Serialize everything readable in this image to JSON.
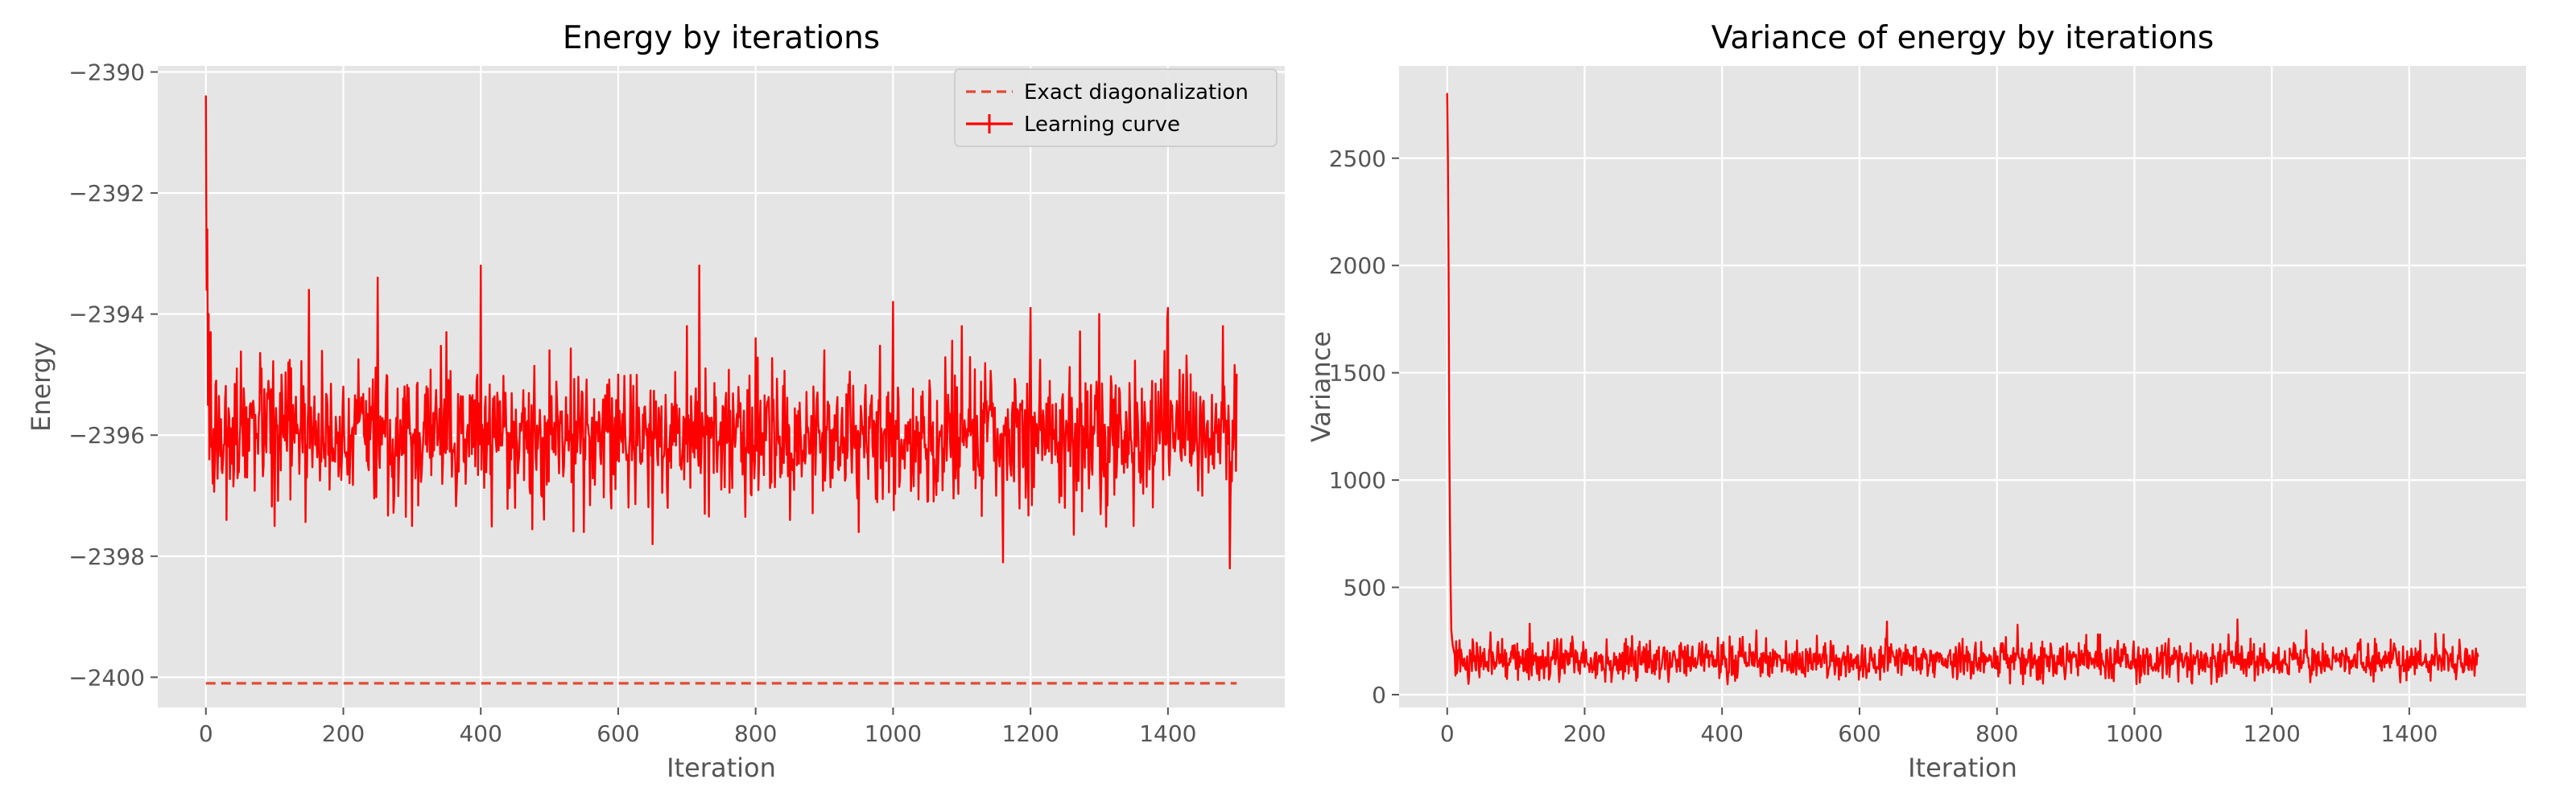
{
  "colors": {
    "series": "#ff0000",
    "exact": "#e24a33",
    "plot_background": "#e5e5e5",
    "grid": "#ffffff",
    "tick_text": "#555555"
  },
  "chart_data": [
    {
      "type": "line",
      "title": "Energy by iterations",
      "xlabel": "Iteration",
      "ylabel": "Energy",
      "xlim": [
        -70,
        1570
      ],
      "ylim": [
        -2400.5,
        -2389.9
      ],
      "xticks": [
        0,
        200,
        400,
        600,
        800,
        1000,
        1200,
        1400
      ],
      "yticks": [
        -2400,
        -2398,
        -2396,
        -2394,
        -2392,
        -2390
      ],
      "xtick_labels": [
        "0",
        "200",
        "400",
        "600",
        "800",
        "1000",
        "1200",
        "1400"
      ],
      "ytick_labels": [
        "−2400",
        "−2398",
        "−2396",
        "−2394",
        "−2392",
        "−2390"
      ],
      "grid": true,
      "legend_position": "top-right",
      "series": [
        {
          "name": "Exact diagonalization",
          "style": "dashed",
          "x": [
            0,
            1500
          ],
          "y": [
            -2400.1,
            -2400.1
          ]
        },
        {
          "name": "Learning curve",
          "style": "solid",
          "x": [
            0,
            1,
            2,
            3,
            4,
            5,
            7,
            10,
            15,
            20,
            30,
            45,
            60,
            80,
            100,
            120,
            150,
            180,
            200,
            250,
            300,
            350,
            400,
            450,
            500,
            550,
            600,
            650,
            700,
            718,
            750,
            800,
            850,
            900,
            950,
            1000,
            1050,
            1100,
            1150,
            1160,
            1200,
            1250,
            1300,
            1350,
            1400,
            1450,
            1480,
            1490,
            1500
          ],
          "y": [
            -2390.4,
            -2393.6,
            -2392.6,
            -2395.5,
            -2394.0,
            -2396.4,
            -2394.3,
            -2396.8,
            -2395.1,
            -2396.0,
            -2397.4,
            -2394.9,
            -2396.7,
            -2395.3,
            -2397.5,
            -2394.8,
            -2393.6,
            -2396.9,
            -2395.2,
            -2393.4,
            -2397.5,
            -2394.3,
            -2393.2,
            -2397.2,
            -2394.6,
            -2397.6,
            -2395.0,
            -2397.8,
            -2394.2,
            -2393.2,
            -2396.9,
            -2394.4,
            -2397.4,
            -2394.6,
            -2397.6,
            -2393.8,
            -2397.1,
            -2394.2,
            -2397.0,
            -2398.1,
            -2393.9,
            -2397.2,
            -2394.0,
            -2397.5,
            -2393.9,
            -2397.0,
            -2394.2,
            -2398.2,
            -2395.0
          ]
        }
      ]
    },
    {
      "type": "line",
      "title": "Variance of energy by iterations",
      "xlabel": "Iteration",
      "ylabel": "Variance",
      "xlim": [
        -70,
        1570
      ],
      "ylim": [
        -60,
        2930
      ],
      "xticks": [
        0,
        200,
        400,
        600,
        800,
        1000,
        1200,
        1400
      ],
      "yticks": [
        0,
        500,
        1000,
        1500,
        2000,
        2500
      ],
      "xtick_labels": [
        "0",
        "200",
        "400",
        "600",
        "800",
        "1000",
        "1200",
        "1400"
      ],
      "ytick_labels": [
        "0",
        "500",
        "1000",
        "1500",
        "2000",
        "2500"
      ],
      "grid": true,
      "series": [
        {
          "style": "solid",
          "x": [
            0,
            1,
            2,
            3,
            4,
            5,
            6,
            8,
            10,
            15,
            20,
            30,
            40,
            60,
            80,
            100,
            120,
            150,
            180,
            200,
            230,
            260,
            300,
            350,
            400,
            450,
            500,
            550,
            600,
            640,
            700,
            750,
            800,
            850,
            900,
            950,
            1000,
            1050,
            1100,
            1150,
            1200,
            1250,
            1300,
            1350,
            1400,
            1450,
            1500
          ],
          "y": [
            2800,
            2500,
            2000,
            1200,
            800,
            500,
            300,
            230,
            200,
            120,
            210,
            90,
            180,
            110,
            260,
            120,
            330,
            100,
            240,
            130,
            60,
            260,
            110,
            230,
            140,
            300,
            120,
            240,
            130,
            340,
            110,
            260,
            120,
            240,
            100,
            280,
            140,
            260,
            120,
            350,
            140,
            300,
            130,
            260,
            150,
            280,
            180
          ]
        }
      ]
    }
  ]
}
